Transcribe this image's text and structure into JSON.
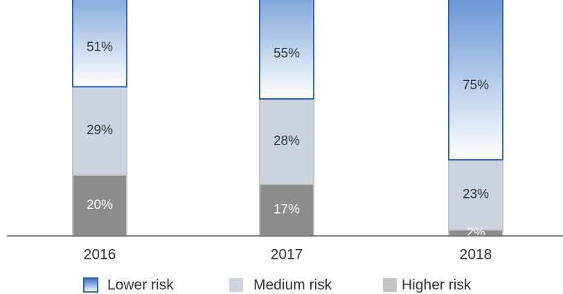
{
  "chart_data": {
    "type": "bar",
    "stacked": true,
    "percent_stacked": true,
    "categories": [
      "2016",
      "2017",
      "2018"
    ],
    "series": [
      {
        "name": "Higher risk",
        "values": [
          20,
          17,
          2
        ],
        "labels": [
          "20%",
          "17%",
          "2%"
        ]
      },
      {
        "name": "Medium risk",
        "values": [
          29,
          28,
          23
        ],
        "labels": [
          "29%",
          "28%",
          "23%"
        ]
      },
      {
        "name": "Lower risk",
        "values": [
          51,
          55,
          75
        ],
        "labels": [
          "51%",
          "55%",
          "75%"
        ]
      }
    ],
    "legend": {
      "placement": "bottom",
      "entries": [
        "Lower risk",
        "Medium risk",
        "Higher risk"
      ]
    },
    "ylim": [
      0,
      100
    ],
    "grid": false,
    "colors": {
      "lower_risk_top": "#2b6cc4",
      "lower_risk_bottom": "#ffffff",
      "lower_risk_border": "#2a66bf",
      "medium_risk": "#ccd4e0",
      "medium_risk_border": "#c4c4c4",
      "higher_risk": "#8c8c8c",
      "higher_risk_border": "#c4c4c4",
      "axis": "#595959",
      "text": "#333333",
      "label_on_dark": "#ffffff"
    }
  }
}
